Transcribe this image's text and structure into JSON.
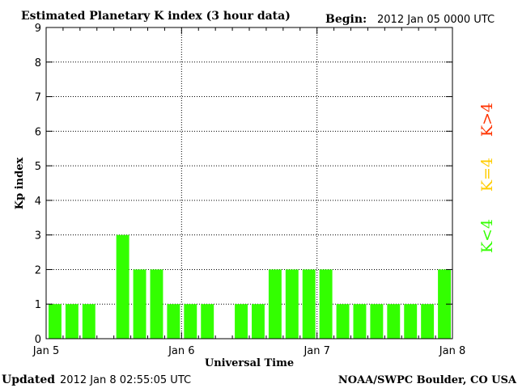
{
  "header": {
    "title": "Estimated Planetary K index (3 hour data)",
    "begin_label": "Begin:",
    "begin_value": "2012 Jan 05 0000 UTC"
  },
  "footer": {
    "updated_label": "Updated",
    "updated_value": "2012 Jan  8 02:55:05 UTC",
    "source": "NOAA/SWPC Boulder, CO USA"
  },
  "legend": {
    "greater": "K>4",
    "equal": "K=4",
    "less": "K<4"
  },
  "colors": {
    "bar_green": "#33ff00",
    "legend_red": "#ff3300",
    "legend_yellow": "#ffcc00",
    "legend_green": "#33ff00"
  },
  "chart_data": {
    "type": "bar",
    "title": "Estimated Planetary K index (3 hour data)",
    "xlabel": "Universal Time",
    "ylabel": "Kp index",
    "ylim": [
      0,
      9
    ],
    "yticks": [
      "0",
      "1",
      "2",
      "3",
      "4",
      "5",
      "6",
      "7",
      "8",
      "9"
    ],
    "xticks": [
      "Jan 5",
      "Jan 6",
      "Jan 7",
      "Jan 8"
    ],
    "grid": true,
    "categories": [
      "Jan 5 00",
      "Jan 5 03",
      "Jan 5 06",
      "Jan 5 09",
      "Jan 5 12",
      "Jan 5 15",
      "Jan 5 18",
      "Jan 5 21",
      "Jan 6 00",
      "Jan 6 03",
      "Jan 6 06",
      "Jan 6 09",
      "Jan 6 12",
      "Jan 6 15",
      "Jan 6 18",
      "Jan 6 21",
      "Jan 7 00",
      "Jan 7 03",
      "Jan 7 06",
      "Jan 7 09",
      "Jan 7 12",
      "Jan 7 15",
      "Jan 7 18",
      "Jan 7 21"
    ],
    "values": [
      1,
      1,
      1,
      0,
      3,
      2,
      2,
      1,
      1,
      1,
      0,
      1,
      1,
      2,
      2,
      2,
      2,
      1,
      1,
      1,
      1,
      1,
      1,
      2
    ]
  }
}
